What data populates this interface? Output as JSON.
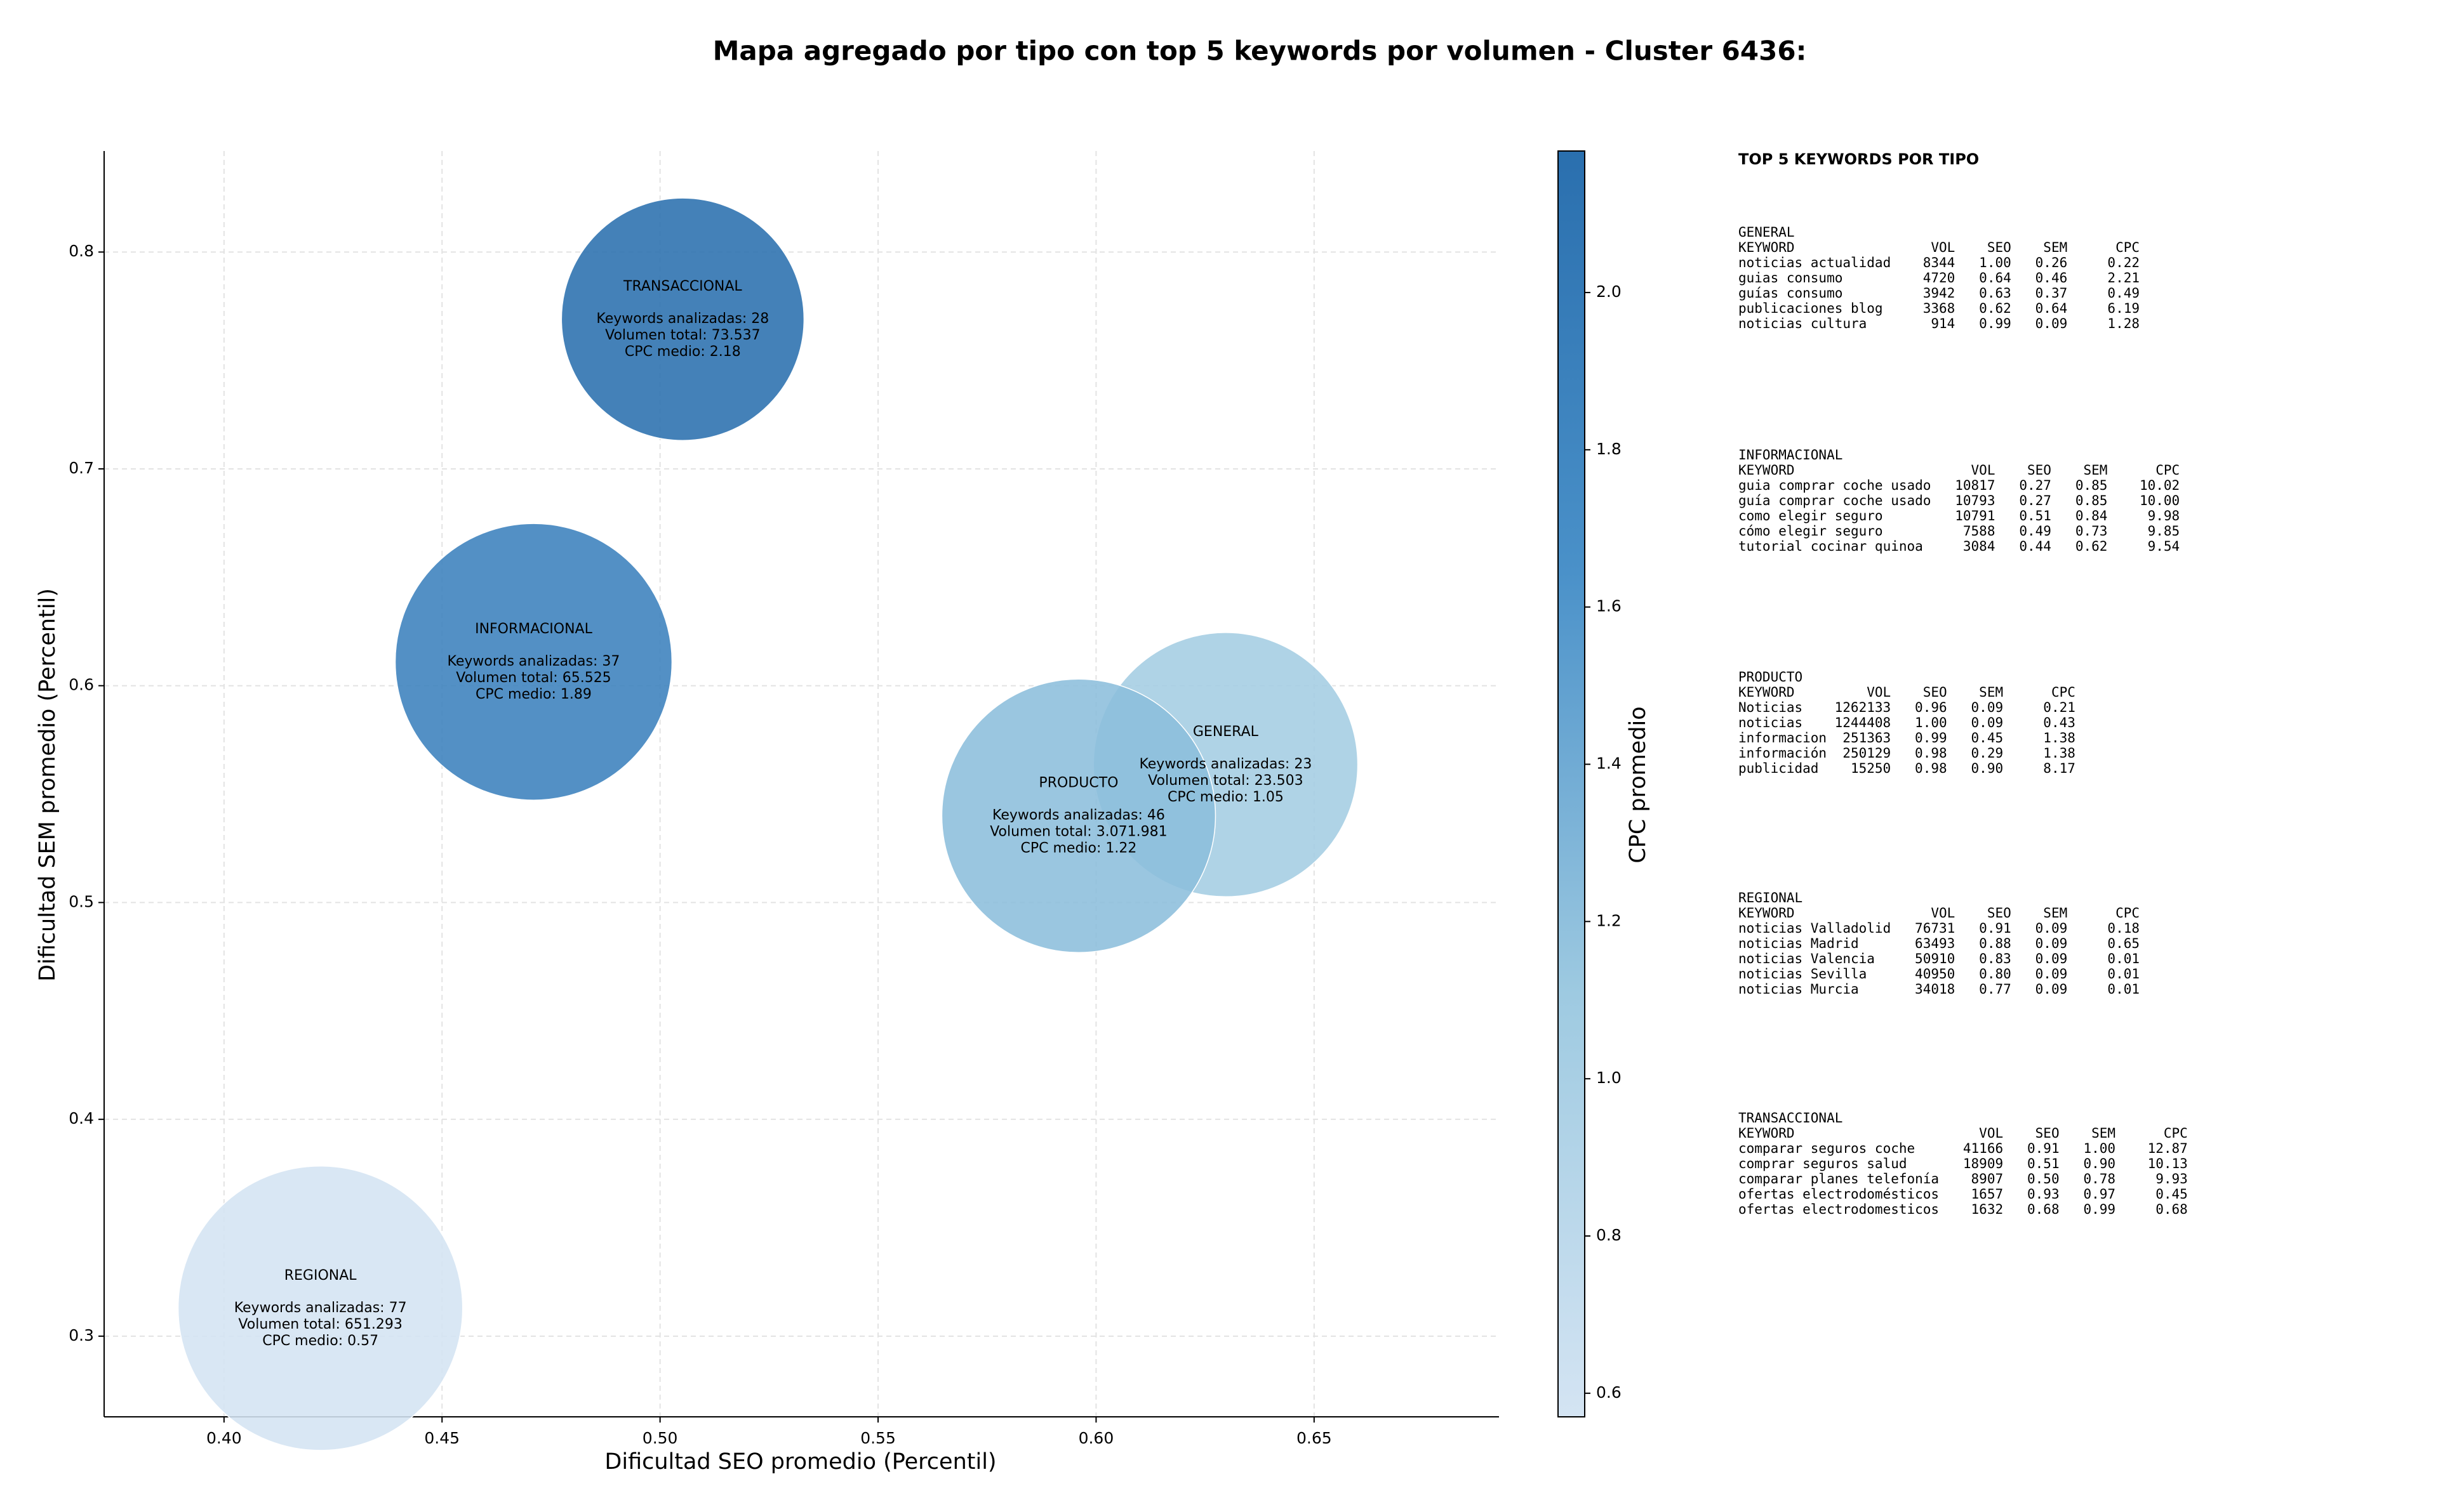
{
  "chart_data": {
    "type": "scatter",
    "title": "Mapa agregado por tipo con top 5 keywords por volumen - Cluster 6436:",
    "xlabel": "Dificultad SEO promedio (Percentil)",
    "ylabel": "Dificultad SEM promedio (Percentil)",
    "labels": [
      "GENERAL",
      "INFORMACIONAL",
      "PRODUCTO",
      "REGIONAL",
      "TRANSACCIONAL"
    ],
    "annotations": [
      [
        "Keywords analizadas: 23",
        "Volumen total: 23.503",
        "CPC medio: 1.05"
      ],
      [
        "Keywords analizadas: 37",
        "Volumen total: 65.525",
        "CPC medio: 1.89"
      ],
      [
        "Keywords analizadas: 46",
        "Volumen total: 3.071.981",
        "CPC medio: 1.22"
      ],
      [
        "Keywords analizadas: 77",
        "Volumen total: 651.293",
        "CPC medio: 0.57"
      ],
      [
        "Keywords analizadas: 28",
        "Volumen total: 73.537",
        "CPC medio: 2.18"
      ]
    ],
    "x": [
      0.6297,
      0.471,
      0.596,
      0.4221,
      0.5052
    ],
    "y": [
      0.5636,
      0.611,
      0.54,
      0.3129,
      0.769
    ],
    "sizes": [
      7225,
      7921,
      7744,
      8372,
      6084
    ],
    "color_values": [
      1.05,
      1.89,
      1.22,
      0.57,
      2.18
    ],
    "xlim": [
      0.3725,
      0.6924
    ],
    "xticks": [
      {
        "value": 0.4,
        "label": "0.40"
      },
      0.45,
      {
        "value": 0.5,
        "label": "0.50"
      },
      0.55,
      {
        "value": 0.6,
        "label": "0.60"
      },
      0.65
    ],
    "ylim": [
      0.2628,
      0.8466
    ],
    "yticks": [
      0.3,
      0.4,
      0.5,
      0.6,
      0.7,
      0.8
    ],
    "grid": true,
    "colorbar": {
      "label": "CPC promedio",
      "lim": [
        0.57,
        2.18
      ],
      "ticks": [
        0.6,
        0.8,
        {
          "value": 1,
          "label": "1.0"
        },
        1.2,
        1.4,
        1.6,
        1.8,
        {
          "value": 2,
          "label": "2.0"
        }
      ],
      "colormap": [
        "#d4e4f3",
        "#9ecae1",
        "#4a91c9",
        "#2a6fae"
      ]
    }
  },
  "keyword_panel": {
    "title": "TOP 5 KEYWORDS POR TIPO",
    "columns": [
      "KEYWORD",
      "VOL",
      "SEO",
      "SEM",
      "CPC"
    ],
    "groups": [
      {
        "name": "GENERAL",
        "rows": [
          [
            "noticias actualidad",
            "8344",
            "1.00",
            "0.26",
            "0.22"
          ],
          [
            "guias consumo",
            "4720",
            "0.64",
            "0.46",
            "2.21"
          ],
          [
            "guías consumo",
            "3942",
            "0.63",
            "0.37",
            "0.49"
          ],
          [
            "publicaciones blog",
            "3368",
            "0.62",
            "0.64",
            "6.19"
          ],
          [
            "noticias cultura",
            "914",
            "0.99",
            "0.09",
            "1.28"
          ]
        ]
      },
      {
        "name": "INFORMACIONAL",
        "rows": [
          [
            "guia comprar coche usado",
            "10817",
            "0.27",
            "0.85",
            "10.02"
          ],
          [
            "guía comprar coche usado",
            "10793",
            "0.27",
            "0.85",
            "10.00"
          ],
          [
            "como elegir seguro",
            "10791",
            "0.51",
            "0.84",
            "9.98"
          ],
          [
            "cómo elegir seguro",
            "7588",
            "0.49",
            "0.73",
            "9.85"
          ],
          [
            "tutorial cocinar quinoa",
            "3084",
            "0.44",
            "0.62",
            "9.54"
          ]
        ]
      },
      {
        "name": "PRODUCTO",
        "rows": [
          [
            "Noticias",
            "1262133",
            "0.96",
            "0.09",
            "0.21"
          ],
          [
            "noticias",
            "1244408",
            "1.00",
            "0.09",
            "0.43"
          ],
          [
            "informacion",
            "251363",
            "0.99",
            "0.45",
            "1.38"
          ],
          [
            "información",
            "250129",
            "0.98",
            "0.29",
            "1.38"
          ],
          [
            "publicidad",
            "15250",
            "0.98",
            "0.90",
            "8.17"
          ]
        ]
      },
      {
        "name": "REGIONAL",
        "rows": [
          [
            "noticias Valladolid",
            "76731",
            "0.91",
            "0.09",
            "0.18"
          ],
          [
            "noticias Madrid",
            "63493",
            "0.88",
            "0.09",
            "0.65"
          ],
          [
            "noticias Valencia",
            "50910",
            "0.83",
            "0.09",
            "0.01"
          ],
          [
            "noticias Sevilla",
            "40950",
            "0.80",
            "0.09",
            "0.01"
          ],
          [
            "noticias Murcia",
            "34018",
            "0.77",
            "0.09",
            "0.01"
          ]
        ]
      },
      {
        "name": "TRANSACCIONAL",
        "rows": [
          [
            "comparar seguros coche",
            "41166",
            "0.91",
            "1.00",
            "12.87"
          ],
          [
            "comprar seguros salud",
            "18909",
            "0.51",
            "0.90",
            "10.13"
          ],
          [
            "comparar planes telefonía",
            "8907",
            "0.50",
            "0.78",
            "9.93"
          ],
          [
            "ofertas electrodomésticos",
            "1657",
            "0.93",
            "0.97",
            "0.45"
          ],
          [
            "ofertas electrodomesticos",
            "1632",
            "0.68",
            "0.99",
            "0.68"
          ]
        ]
      }
    ]
  }
}
